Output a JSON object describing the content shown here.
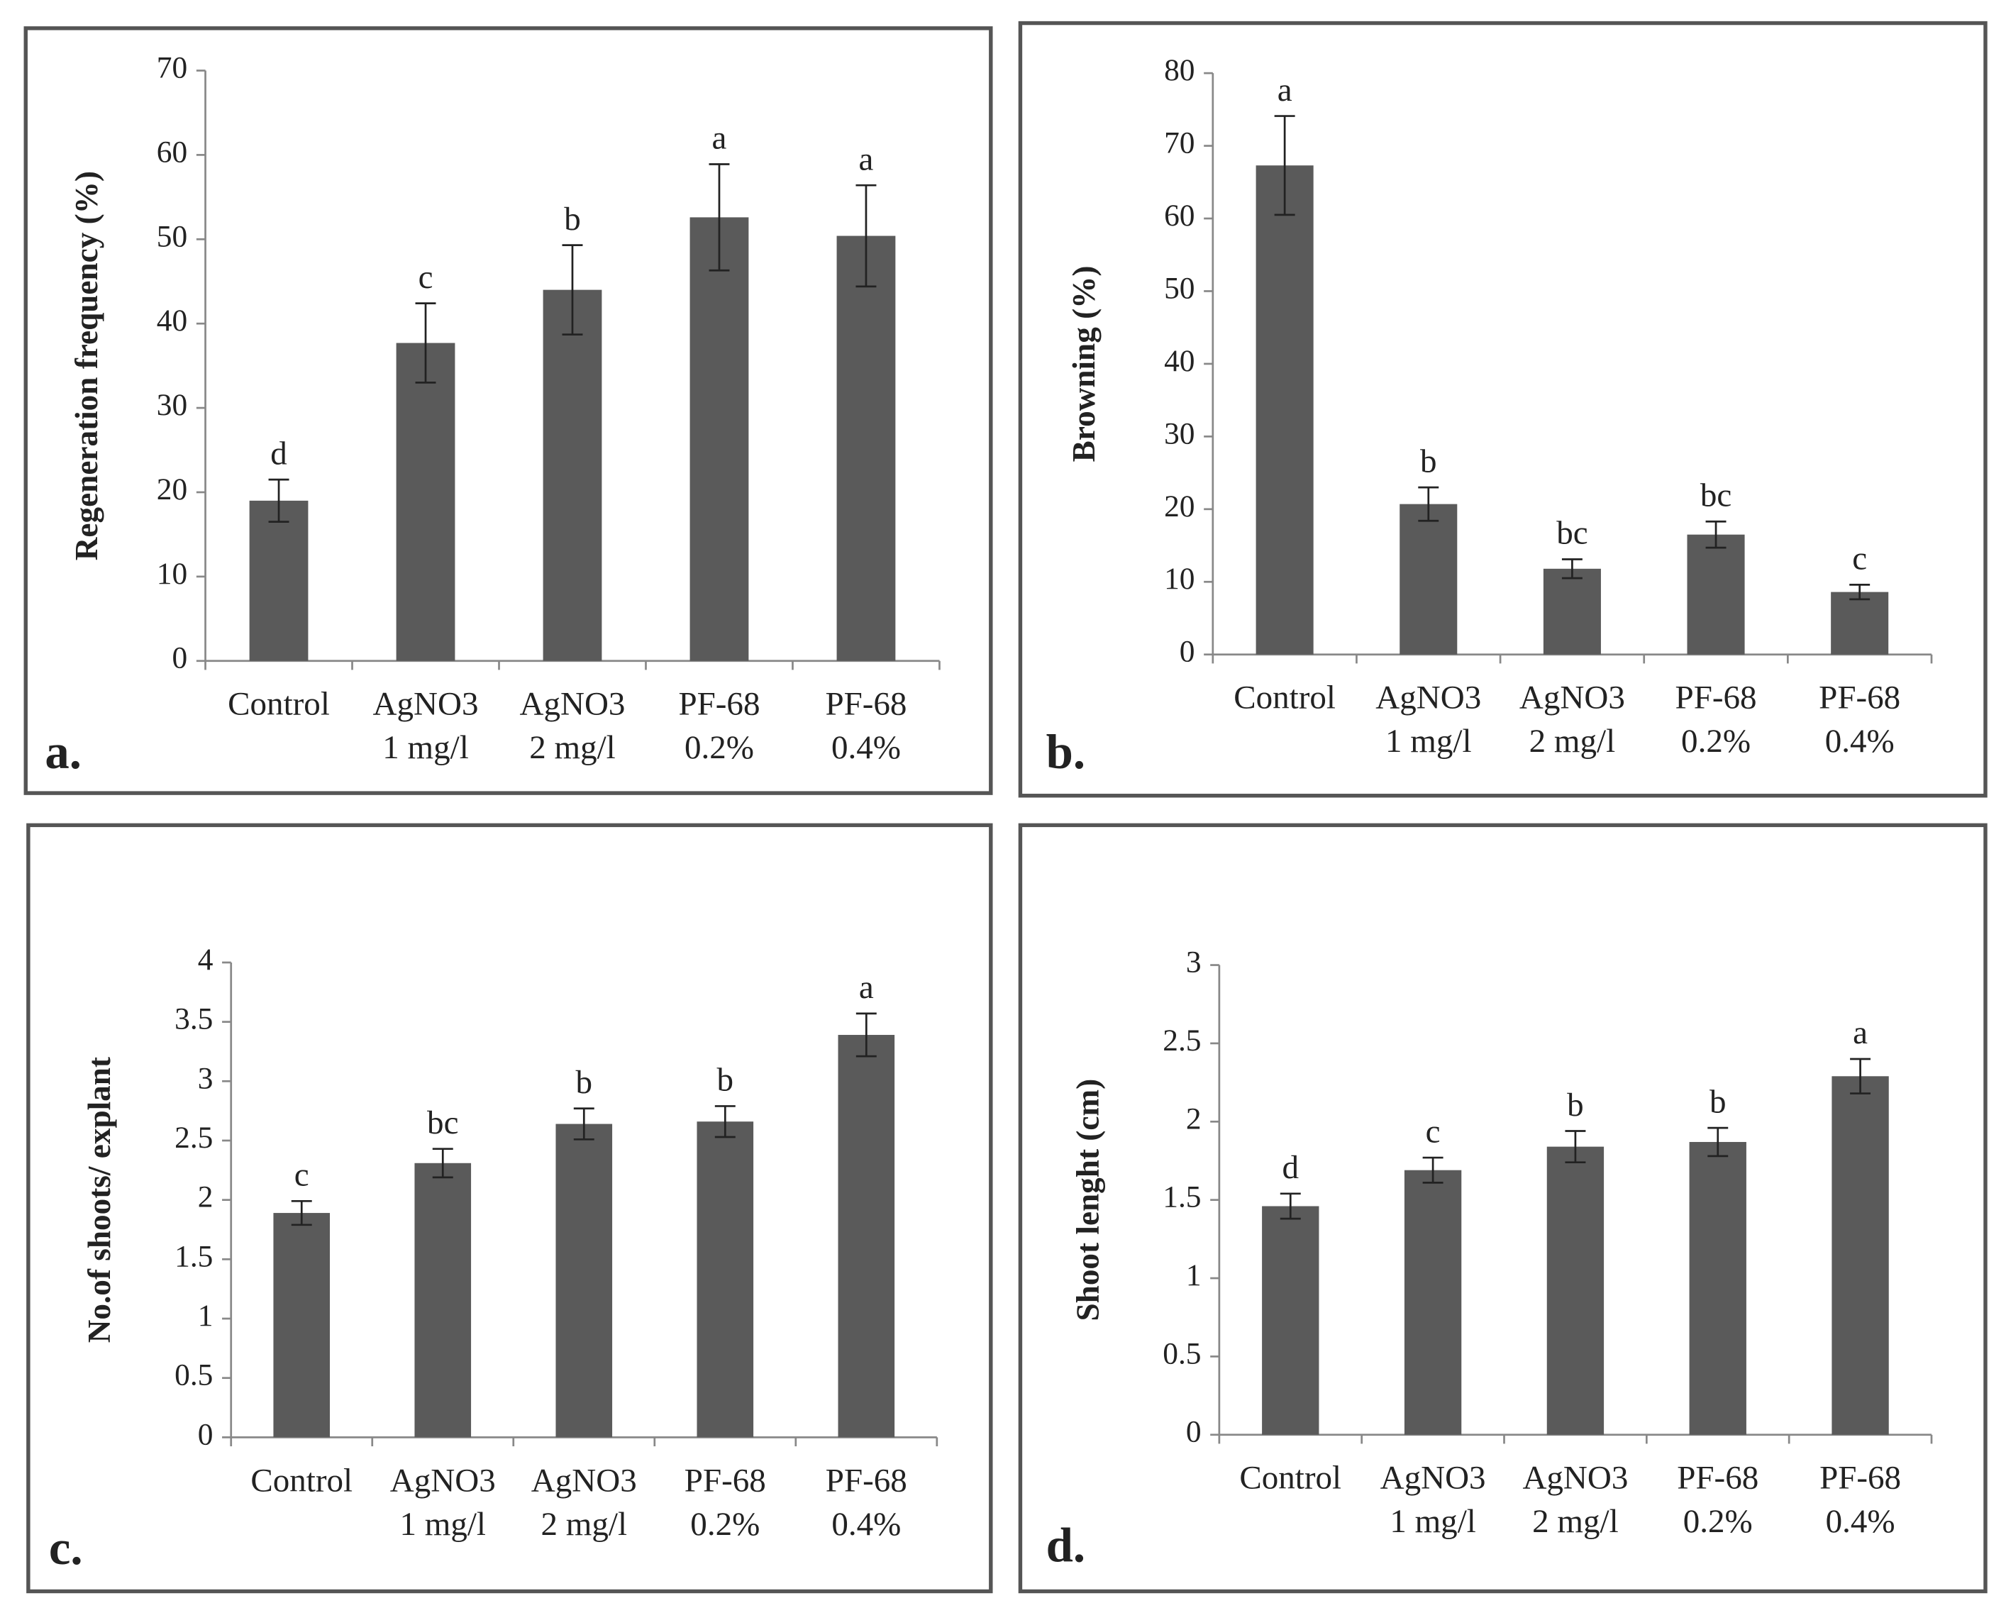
{
  "chart_data": [
    {
      "type": "bar",
      "panel_label": "a.",
      "ylabel": "Regeneration frequency (%)",
      "categories": [
        [
          "Control"
        ],
        [
          "AgNO3",
          "1 mg/l"
        ],
        [
          "AgNO3",
          "2 mg/l"
        ],
        [
          "PF-68",
          "0.2%"
        ],
        [
          "PF-68",
          "0.4%"
        ]
      ],
      "values": [
        19,
        37.7,
        44,
        52.6,
        50.4
      ],
      "errors": [
        2.5,
        4.7,
        5.3,
        6.3,
        6
      ],
      "annotations": [
        "d",
        "c",
        "b",
        "a",
        "a"
      ],
      "color": "#5a5a5a",
      "ylim": [
        0,
        70
      ],
      "yticks": [
        0,
        10,
        20,
        30,
        40,
        50,
        60,
        70
      ],
      "grid": false
    },
    {
      "type": "bar",
      "panel_label": "b.",
      "ylabel": "Browning (%)",
      "categories": [
        [
          "Control"
        ],
        [
          "AgNO3",
          "1 mg/l"
        ],
        [
          "AgNO3",
          "2 mg/l"
        ],
        [
          "PF-68",
          "0.2%"
        ],
        [
          "PF-68",
          "0.4%"
        ]
      ],
      "values": [
        67.3,
        20.7,
        11.8,
        16.5,
        8.6
      ],
      "errors": [
        6.8,
        2.3,
        1.3,
        1.8,
        1
      ],
      "annotations": [
        "a",
        "b",
        "bc",
        "bc",
        "c"
      ],
      "color": "#5a5a5a",
      "ylim": [
        0,
        80
      ],
      "yticks": [
        0,
        10,
        20,
        30,
        40,
        50,
        60,
        70,
        80
      ],
      "grid": false
    },
    {
      "type": "bar",
      "panel_label": "c.",
      "ylabel": "No.of shoots/ explant",
      "categories": [
        [
          "Control"
        ],
        [
          "AgNO3",
          "1 mg/l"
        ],
        [
          "AgNO3",
          "2 mg/l"
        ],
        [
          "PF-68",
          "0.2%"
        ],
        [
          "PF-68",
          "0.4%"
        ]
      ],
      "values": [
        1.89,
        2.31,
        2.64,
        2.66,
        3.39
      ],
      "errors": [
        0.1,
        0.12,
        0.13,
        0.13,
        0.18
      ],
      "annotations": [
        "c",
        "bc",
        "b",
        "b",
        "a"
      ],
      "color": "#5a5a5a",
      "ylim": [
        0,
        4
      ],
      "yticks": [
        0,
        0.5,
        1,
        1.5,
        2,
        2.5,
        3,
        3.5,
        4
      ],
      "grid": false
    },
    {
      "type": "bar",
      "panel_label": "d.",
      "ylabel": "Shoot lenght (cm)",
      "categories": [
        [
          "Control"
        ],
        [
          "AgNO3",
          "1 mg/l"
        ],
        [
          "AgNO3",
          "2 mg/l"
        ],
        [
          "PF-68",
          "0.2%"
        ],
        [
          "PF-68",
          "0.4%"
        ]
      ],
      "values": [
        1.46,
        1.69,
        1.84,
        1.87,
        2.29
      ],
      "errors": [
        0.08,
        0.08,
        0.1,
        0.09,
        0.11
      ],
      "annotations": [
        "d",
        "c",
        "b",
        "b",
        "a"
      ],
      "color": "#5a5a5a",
      "ylim": [
        0,
        3
      ],
      "yticks": [
        0,
        0.5,
        1,
        1.5,
        2,
        2.5,
        3
      ],
      "grid": false
    }
  ]
}
